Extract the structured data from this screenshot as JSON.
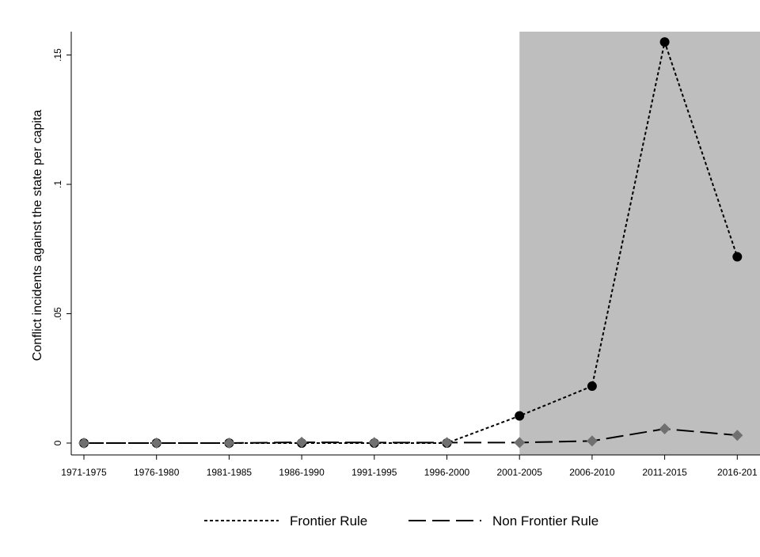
{
  "chart_data": {
    "type": "line",
    "title": "",
    "xlabel": "",
    "ylabel": "Conflict incidents against the state per capita",
    "categories": [
      "1971-1975",
      "1976-1980",
      "1981-1985",
      "1986-1990",
      "1991-1995",
      "1996-2000",
      "2001-2005",
      "2006-2010",
      "2011-2015",
      "2016-201"
    ],
    "ylim": [
      0,
      0.16
    ],
    "yticks": [
      {
        "value": 0,
        "label": "0"
      },
      {
        "value": 0.05,
        "label": ".05"
      },
      {
        "value": 0.1,
        "label": ".1"
      },
      {
        "value": 0.15,
        "label": ".15"
      }
    ],
    "shaded_region": {
      "from_category": "2001-2005",
      "color": "#bebebe"
    },
    "grid": false,
    "legend_position": "bottom",
    "series": [
      {
        "name": "Frontier Rule",
        "style": "dotted",
        "marker": "circle",
        "color": "#000000",
        "values": [
          0,
          0,
          0,
          0,
          0,
          0,
          0.0105,
          0.022,
          0.155,
          0.072
        ]
      },
      {
        "name": "Non Frontier Rule",
        "style": "long-dash",
        "marker": "diamond",
        "color": "#000000",
        "marker_color": "#707070",
        "values": [
          0,
          0,
          0,
          0.0003,
          0.0002,
          0.0002,
          0.0002,
          0.0008,
          0.0055,
          0.003
        ]
      }
    ]
  }
}
